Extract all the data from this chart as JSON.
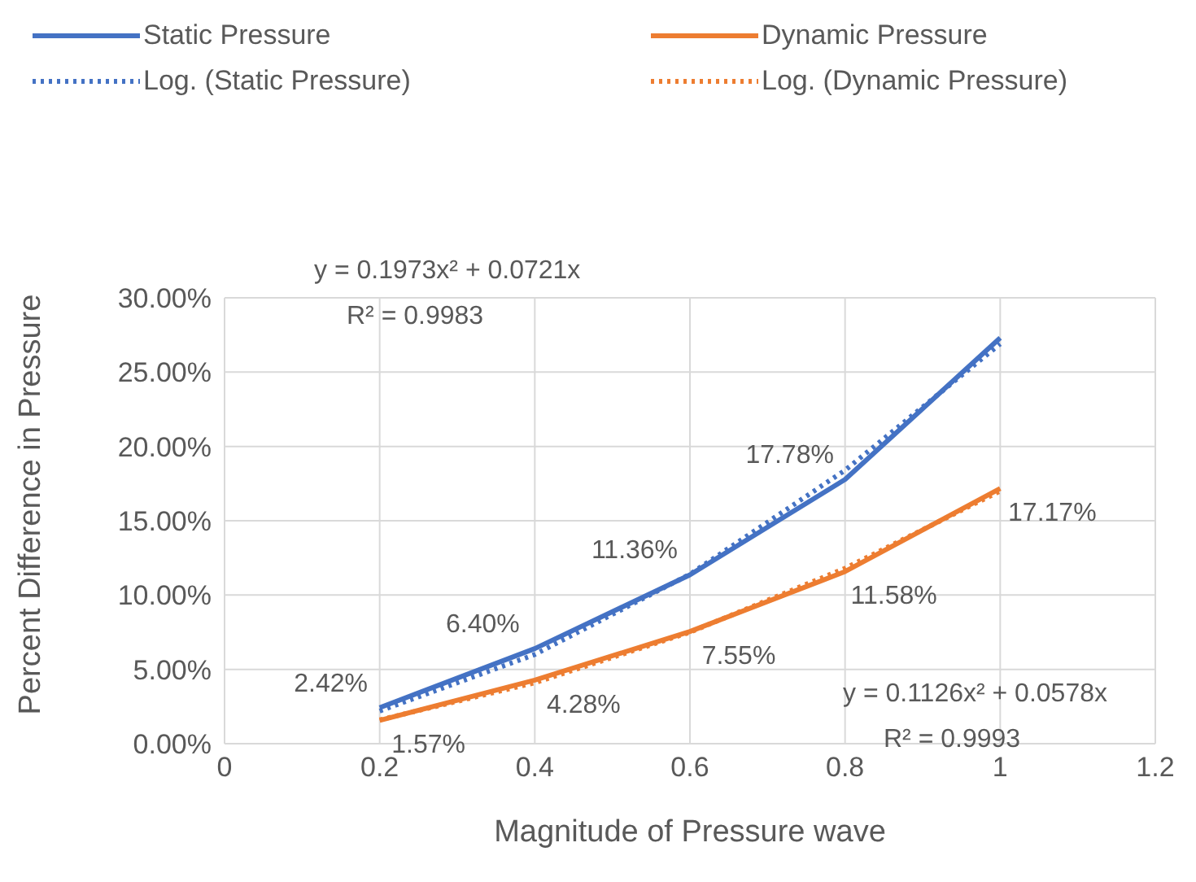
{
  "chart_data": {
    "type": "line",
    "xlabel": "Magnitude of Pressure wave",
    "ylabel": "Percent Difference in Pressure",
    "x": [
      0.2,
      0.4,
      0.6,
      0.8,
      1
    ],
    "series": [
      {
        "name": "Static Pressure",
        "color": "#4472c4",
        "values": [
          2.42,
          6.4,
          11.36,
          17.78,
          27.3
        ],
        "value_labels": [
          "2.42%",
          "6.40%",
          "11.36%",
          "17.78%",
          null
        ],
        "line_style": "solid"
      },
      {
        "name": "Dynamic Pressure",
        "color": "#ed7d31",
        "values": [
          1.57,
          4.28,
          7.55,
          11.58,
          17.17
        ],
        "value_labels": [
          "1.57%",
          "4.28%",
          "7.55%",
          "11.58%",
          "17.17%"
        ],
        "line_style": "solid"
      },
      {
        "name": "Log. (Static Pressure)",
        "color": "#4472c4",
        "type": "line",
        "line_style": "dotted",
        "x": [
          0.2,
          0.4,
          0.6,
          0.8,
          1
        ],
        "values": [
          2.2,
          6.0,
          11.4,
          18.4,
          26.9
        ]
      },
      {
        "name": "Log. (Dynamic Pressure)",
        "color": "#ed7d31",
        "type": "line",
        "line_style": "dotted",
        "x": [
          0.2,
          0.4,
          0.6,
          0.8,
          1
        ],
        "values": [
          1.6,
          4.1,
          7.5,
          11.8,
          17.0
        ]
      }
    ],
    "xlim": [
      0,
      1.2
    ],
    "xticks": [
      0,
      0.2,
      0.4,
      0.6,
      0.8,
      1,
      1.2
    ],
    "ylim": [
      0,
      30
    ],
    "yticks": [
      {
        "value": 0,
        "label": "0.00%"
      },
      {
        "value": 5,
        "label": "5.00%"
      },
      {
        "value": 10,
        "label": "10.00%"
      },
      {
        "value": 15,
        "label": "15.00%"
      },
      {
        "value": 20,
        "label": "20.00%"
      },
      {
        "value": 25,
        "label": "25.00%"
      },
      {
        "value": 30,
        "label": "30.00%"
      }
    ],
    "grid": true,
    "legend": "top",
    "marker": "none",
    "annotations": [
      "y = 0.1973x² + 0.0721x",
      "R² = 0.9983",
      "y = 0.1126x² + 0.0578x",
      "R² = 0.9993"
    ]
  }
}
